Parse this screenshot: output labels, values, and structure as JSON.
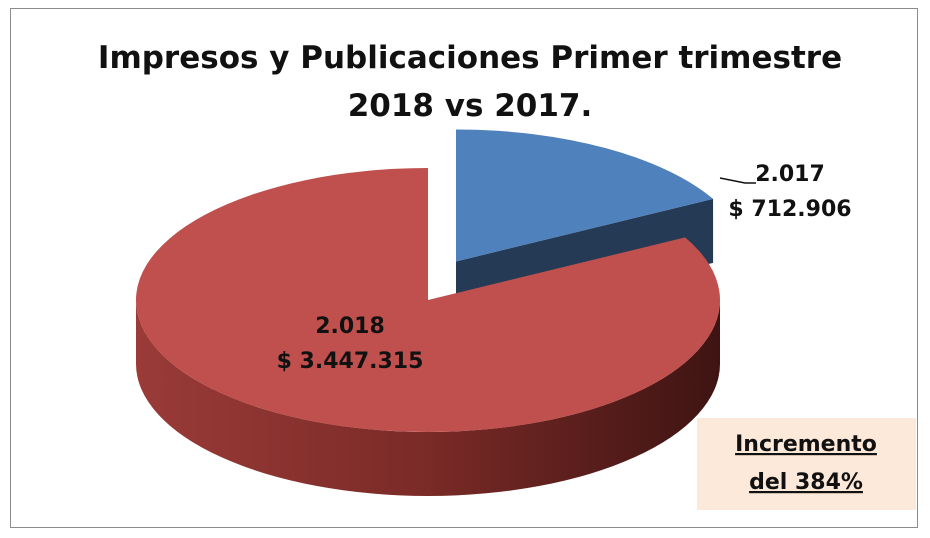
{
  "chart_data": {
    "type": "pie",
    "title": "Impresos y Publicaciones Primer trimestre 2018 vs 2017.",
    "categories": [
      "2.017",
      "2.018"
    ],
    "values": [
      712906,
      3447315
    ],
    "value_labels": [
      "$ 712.906",
      "$ 3.447.315"
    ],
    "colors": [
      "#4f81bd",
      "#c0504d"
    ],
    "annotation": [
      "Incremento",
      "del 384%"
    ]
  }
}
